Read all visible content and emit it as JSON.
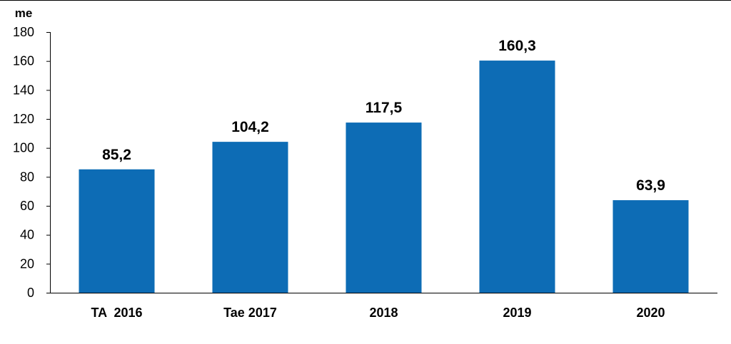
{
  "chart_data": {
    "type": "bar",
    "ylabel": "me",
    "categories": [
      "TA  2016",
      "Tae 2017",
      "2018",
      "2019",
      "2020"
    ],
    "values": [
      85.2,
      104.2,
      117.5,
      160.3,
      63.9
    ],
    "value_labels": [
      "85,2",
      "104,2",
      "117,5",
      "160,3",
      "63,9"
    ],
    "ylim": [
      0,
      180
    ],
    "yticks": [
      0,
      20,
      40,
      60,
      80,
      100,
      120,
      140,
      160,
      180
    ],
    "grid": false,
    "legend": "none",
    "bar_color": "#0D6CB5"
  }
}
